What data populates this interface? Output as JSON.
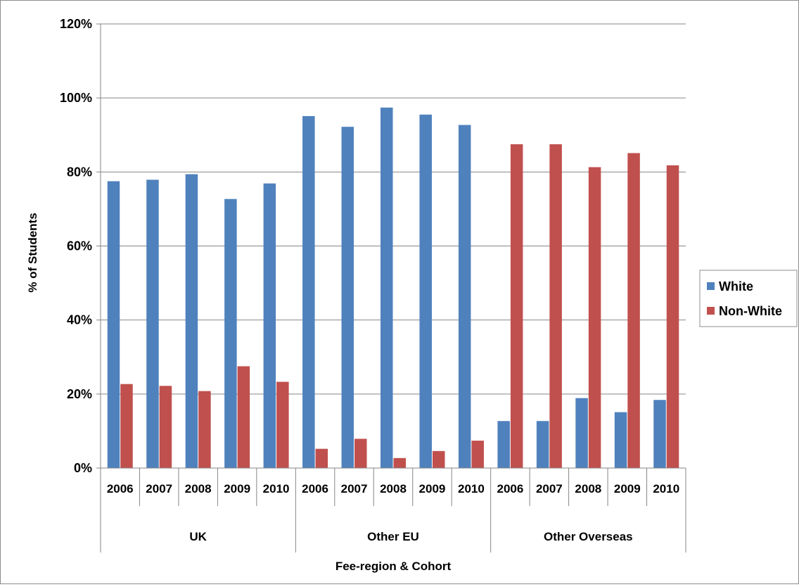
{
  "chart_data": {
    "type": "bar",
    "title": "",
    "xlabel": "Fee-region & Cohort",
    "ylabel": "% of Students",
    "ylim": [
      0,
      1.2
    ],
    "yticks": [
      "0%",
      "20%",
      "40%",
      "60%",
      "80%",
      "100%",
      "120%"
    ],
    "grid": true,
    "legend_position": "right",
    "groups": [
      {
        "name": "UK",
        "categories": [
          "2006",
          "2007",
          "2008",
          "2009",
          "2010"
        ]
      },
      {
        "name": "Other EU",
        "categories": [
          "2006",
          "2007",
          "2008",
          "2009",
          "2010"
        ]
      },
      {
        "name": "Other Overseas",
        "categories": [
          "2006",
          "2007",
          "2008",
          "2009",
          "2010"
        ]
      }
    ],
    "series": [
      {
        "name": "White",
        "color": "#4f81bd",
        "values": [
          0.775,
          0.779,
          0.794,
          0.727,
          0.769,
          0.951,
          0.922,
          0.974,
          0.955,
          0.927,
          0.127,
          0.127,
          0.189,
          0.151,
          0.184
        ]
      },
      {
        "name": "Non-White",
        "color": "#c0504d",
        "values": [
          0.227,
          0.222,
          0.208,
          0.275,
          0.233,
          0.052,
          0.079,
          0.027,
          0.046,
          0.074,
          0.875,
          0.875,
          0.813,
          0.851,
          0.818
        ]
      }
    ]
  }
}
